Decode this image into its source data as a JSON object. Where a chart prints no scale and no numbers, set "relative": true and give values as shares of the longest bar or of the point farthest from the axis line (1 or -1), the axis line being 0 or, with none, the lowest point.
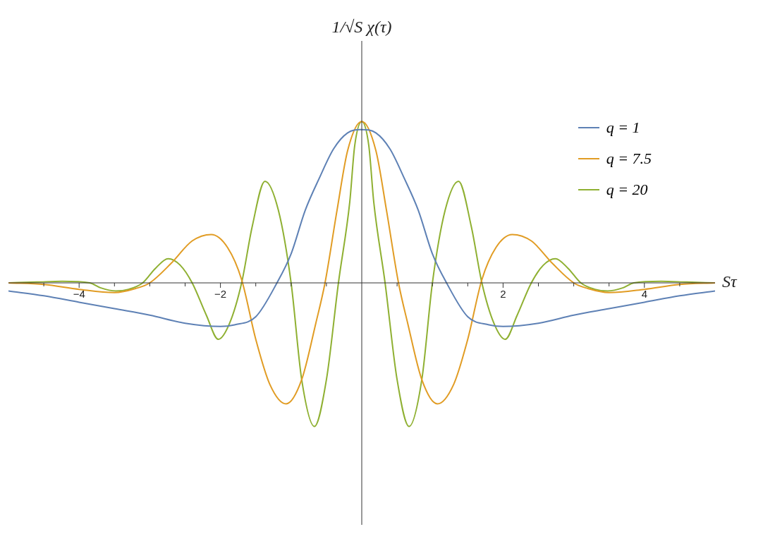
{
  "chart_data": {
    "type": "line",
    "xlabel": "Sτ",
    "annotations": [
      "1/√S χ(τ)"
    ],
    "relative": true,
    "xlim": [
      -5,
      5
    ],
    "xticks": [
      {
        "value": -4.5,
        "label": null
      },
      -4,
      {
        "value": -3.5,
        "label": null
      },
      {
        "value": -3,
        "label": null
      },
      {
        "value": -2.5,
        "label": null
      },
      -2,
      {
        "value": -1.5,
        "label": null
      },
      {
        "value": -1,
        "label": null
      },
      {
        "value": -0.5,
        "label": null
      },
      {
        "value": 0.5,
        "label": null
      },
      {
        "value": 1,
        "label": null
      },
      {
        "value": 1.5,
        "label": null
      },
      2,
      {
        "value": 2.5,
        "label": null
      },
      {
        "value": 3,
        "label": null
      },
      {
        "value": 3.5,
        "label": null
      },
      4,
      {
        "value": 4.5,
        "label": null
      }
    ],
    "legend": "top right",
    "grid": false,
    "marker": "none",
    "line_style": "solid",
    "series": [
      {
        "name": "q = 1",
        "color": "#5e81b5",
        "x": [
          -5,
          -4.5,
          -4,
          -3.5,
          -3,
          -2.5,
          -2,
          -1.8,
          -1.5,
          -1.2,
          -1,
          -0.8,
          -0.6,
          -0.4,
          -0.2,
          0,
          0.2,
          0.4,
          0.6,
          0.8,
          1,
          1.2,
          1.5,
          1.8,
          2,
          2.5,
          3,
          3.5,
          4,
          4.5,
          5
        ],
        "values": [
          -0.05,
          -0.08,
          -0.12,
          -0.16,
          -0.2,
          -0.25,
          -0.27,
          -0.26,
          -0.21,
          0,
          0.18,
          0.45,
          0.65,
          0.83,
          0.93,
          0.95,
          0.93,
          0.83,
          0.65,
          0.45,
          0.18,
          0,
          -0.21,
          -0.26,
          -0.27,
          -0.25,
          -0.2,
          -0.16,
          -0.12,
          -0.08,
          -0.05
        ]
      },
      {
        "name": "q = 7.5",
        "color": "#e19c24",
        "x": [
          -5,
          -4.5,
          -4,
          -3.5,
          -3.2,
          -3,
          -2.7,
          -2.4,
          -2.13,
          -1.9,
          -1.7,
          -1.5,
          -1.3,
          -1.07,
          -0.85,
          -0.65,
          -0.52,
          -0.35,
          -0.2,
          0,
          0.2,
          0.35,
          0.52,
          0.65,
          0.85,
          1.07,
          1.3,
          1.5,
          1.7,
          1.9,
          2.13,
          2.4,
          2.7,
          3,
          3.2,
          3.5,
          4,
          4.5,
          5
        ],
        "values": [
          0,
          -0.01,
          -0.04,
          -0.06,
          -0.035,
          0,
          0.12,
          0.26,
          0.3,
          0.22,
          0.02,
          -0.35,
          -0.63,
          -0.75,
          -0.6,
          -0.25,
          0,
          0.45,
          0.82,
          1,
          0.82,
          0.45,
          0,
          -0.25,
          -0.6,
          -0.75,
          -0.63,
          -0.35,
          0.02,
          0.22,
          0.3,
          0.26,
          0.12,
          0,
          -0.035,
          -0.06,
          -0.04,
          -0.01,
          0
        ]
      },
      {
        "name": "q = 20",
        "color": "#8fb032",
        "x": [
          -5,
          -4.6,
          -4.24,
          -3.85,
          -3.7,
          -3.48,
          -3.3,
          -3.1,
          -2.92,
          -2.74,
          -2.57,
          -2.4,
          -2.2,
          -2.03,
          -1.87,
          -1.7,
          -1.55,
          -1.37,
          -1.18,
          -1,
          -0.85,
          -0.67,
          -0.5,
          -0.33,
          -0.17,
          -0.1,
          0,
          0.1,
          0.17,
          0.33,
          0.5,
          0.67,
          0.85,
          1,
          1.18,
          1.37,
          1.55,
          1.7,
          1.87,
          2.03,
          2.2,
          2.4,
          2.57,
          2.74,
          2.92,
          3.1,
          3.3,
          3.48,
          3.7,
          3.85,
          4.24,
          4.6,
          5
        ],
        "values": [
          0,
          0.005,
          0.01,
          0,
          -0.03,
          -0.05,
          -0.04,
          0,
          0.09,
          0.15,
          0.11,
          0,
          -0.2,
          -0.35,
          -0.25,
          0,
          0.35,
          0.63,
          0.45,
          0,
          -0.6,
          -0.89,
          -0.6,
          0,
          0.5,
          0.85,
          1,
          0.85,
          0.5,
          0,
          -0.6,
          -0.89,
          -0.6,
          0,
          0.45,
          0.63,
          0.35,
          0,
          -0.25,
          -0.35,
          -0.2,
          0,
          0.11,
          0.15,
          0.09,
          0,
          -0.04,
          -0.05,
          -0.03,
          0,
          0.01,
          0.005,
          0
        ]
      }
    ]
  }
}
